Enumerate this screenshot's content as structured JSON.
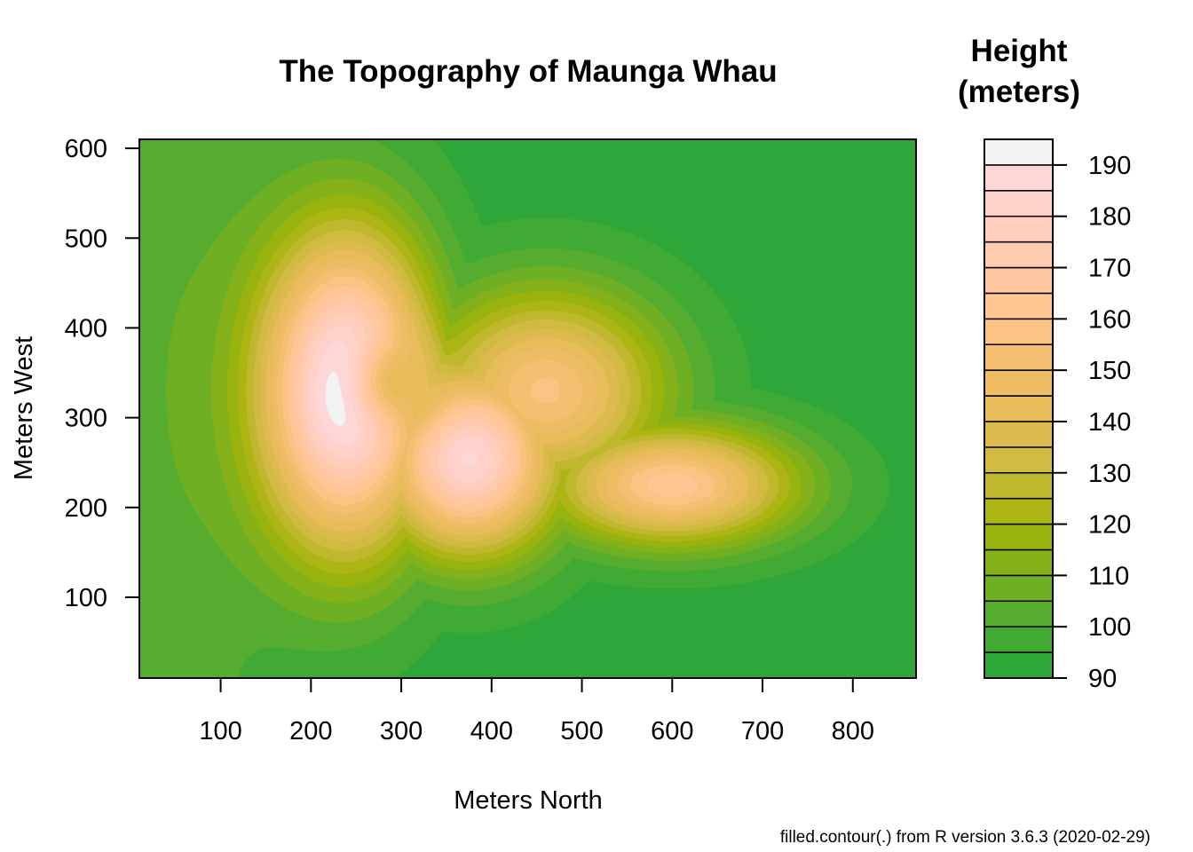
{
  "chart_data": {
    "type": "heatmap",
    "subtype": "filled-contour",
    "title": "The Topography of Maunga Whau",
    "xlabel": "Meters North",
    "ylabel": "Meters West",
    "xlim": [
      10,
      870
    ],
    "ylim": [
      10,
      610
    ],
    "x_ticks": [
      100,
      200,
      300,
      400,
      500,
      600,
      700,
      800
    ],
    "y_ticks": [
      100,
      200,
      300,
      400,
      500,
      600
    ],
    "legend_title_lines": [
      "Height",
      "(meters)"
    ],
    "legend_placement": "right",
    "levels": [
      90,
      95,
      100,
      105,
      110,
      115,
      120,
      125,
      130,
      135,
      140,
      145,
      150,
      155,
      160,
      165,
      170,
      175,
      180,
      185,
      190,
      195
    ],
    "legend_ticks": [
      90,
      100,
      110,
      120,
      130,
      140,
      150,
      160,
      170,
      180,
      190
    ],
    "color_stops": [
      {
        "v": 90,
        "c": "#26a53b"
      },
      {
        "v": 100,
        "c": "#4aab33"
      },
      {
        "v": 110,
        "c": "#7ab01f"
      },
      {
        "v": 120,
        "c": "#a2b408"
      },
      {
        "v": 130,
        "c": "#c9b93a"
      },
      {
        "v": 140,
        "c": "#e4bb55"
      },
      {
        "v": 150,
        "c": "#f2bd69"
      },
      {
        "v": 160,
        "c": "#ffc48c"
      },
      {
        "v": 170,
        "c": "#ffc9a8"
      },
      {
        "v": 180,
        "c": "#ffcfc4"
      },
      {
        "v": 190,
        "c": "#ffd8de"
      },
      {
        "v": 195,
        "c": "#f2f2f2"
      }
    ],
    "terrain_features": [
      {
        "x": 240,
        "y": 330,
        "height": 197,
        "sx": 95,
        "sy": 175
      },
      {
        "x": 375,
        "y": 255,
        "height": 186,
        "sx": 100,
        "sy": 105
      },
      {
        "x": 600,
        "y": 225,
        "height": 163,
        "sx": 135,
        "sy": 65
      },
      {
        "x": 460,
        "y": 330,
        "height": 156,
        "sx": 130,
        "sy": 110
      },
      {
        "x": 300,
        "y": 340,
        "height": 142,
        "sx": 48,
        "sy": 48,
        "crater": true
      }
    ],
    "caption": "filled.contour(.) from R version 3.6.3 (2020-02-29)"
  }
}
